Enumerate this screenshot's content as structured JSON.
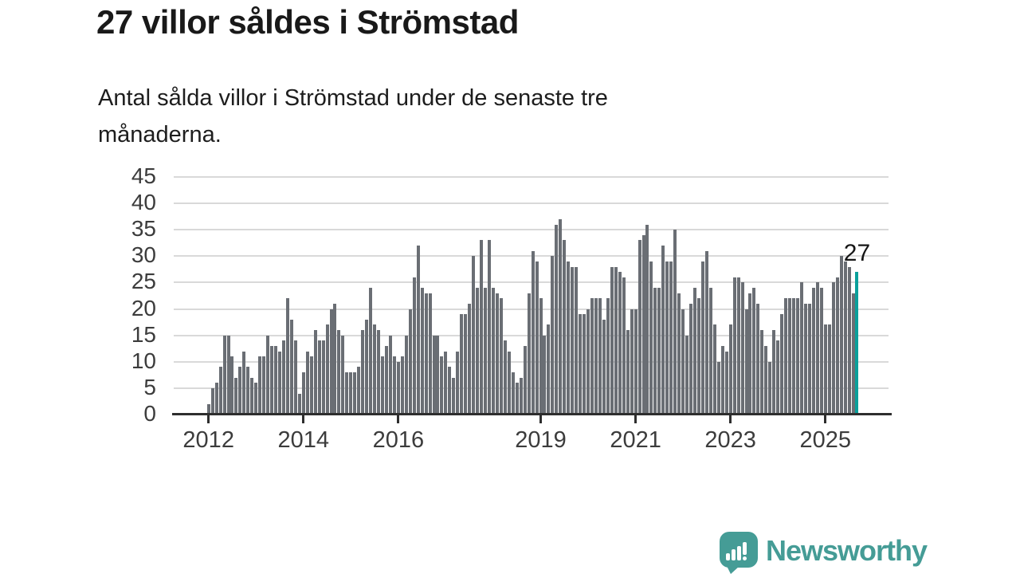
{
  "header": {
    "title": "27 villor såldes i Strömstad",
    "subtitle_lines": [
      "Antal sålda villor i Strömstad under de senaste tre",
      "månaderna."
    ]
  },
  "chart": {
    "bar_color": "#6a6e74",
    "highlight_color": "#0aa09b",
    "grid_color": "#d9d9d9",
    "axis_color": "#2e2e2e",
    "label_color": "#3c3c3c",
    "annotation": {
      "text": "27"
    },
    "y_ticks": [
      0,
      5,
      10,
      15,
      20,
      25,
      30,
      35,
      40,
      45
    ],
    "x_ticks": [
      {
        "label": "2012",
        "month": 0
      },
      {
        "label": "2014",
        "month": 24
      },
      {
        "label": "2016",
        "month": 48
      },
      {
        "label": "2019",
        "month": 84
      },
      {
        "label": "2021",
        "month": 108
      },
      {
        "label": "2023",
        "month": 132
      },
      {
        "label": "2025",
        "month": 156
      }
    ]
  },
  "chart_data": {
    "type": "bar",
    "title": "27 villor såldes i Strömstad",
    "subtitle": "Antal sålda villor i Strömstad under de senaste tre månaderna.",
    "xlabel": "",
    "ylabel": "",
    "x_start": "2012-01",
    "x_interval": "month",
    "x_tick_labels": [
      "2012",
      "2014",
      "2016",
      "2019",
      "2021",
      "2023",
      "2025"
    ],
    "ylim": [
      0,
      45
    ],
    "grid": true,
    "values": [
      2,
      5,
      6,
      9,
      15,
      15,
      11,
      7,
      9,
      12,
      9,
      7,
      6,
      11,
      11,
      15,
      13,
      13,
      12,
      14,
      22,
      18,
      14,
      4,
      8,
      12,
      11,
      16,
      14,
      14,
      17,
      20,
      21,
      16,
      15,
      8,
      8,
      8,
      9,
      16,
      18,
      24,
      17,
      16,
      11,
      13,
      15,
      11,
      10,
      11,
      15,
      20,
      26,
      32,
      24,
      23,
      23,
      15,
      15,
      11,
      12,
      9,
      7,
      12,
      19,
      19,
      21,
      30,
      24,
      33,
      24,
      33,
      24,
      23,
      22,
      14,
      12,
      8,
      6,
      7,
      13,
      23,
      31,
      29,
      22,
      15,
      17,
      30,
      36,
      37,
      33,
      29,
      28,
      28,
      19,
      19,
      20,
      22,
      22,
      22,
      18,
      22,
      28,
      28,
      27,
      26,
      16,
      20,
      20,
      33,
      34,
      36,
      29,
      24,
      24,
      32,
      29,
      29,
      35,
      23,
      20,
      15,
      21,
      24,
      22,
      29,
      31,
      24,
      17,
      10,
      13,
      12,
      17,
      26,
      26,
      25,
      20,
      23,
      24,
      21,
      16,
      13,
      10,
      16,
      14,
      19,
      22,
      22,
      22,
      22,
      25,
      21,
      21,
      24,
      25,
      24,
      17,
      17,
      25,
      26,
      30,
      29,
      28,
      23,
      27
    ],
    "highlight_index": 164,
    "highlight_value": 27
  },
  "footer": {
    "brand": "Newsworthy",
    "brand_color": "#459c96",
    "logo_icon": "speech-bubble-bar-chart-icon"
  }
}
